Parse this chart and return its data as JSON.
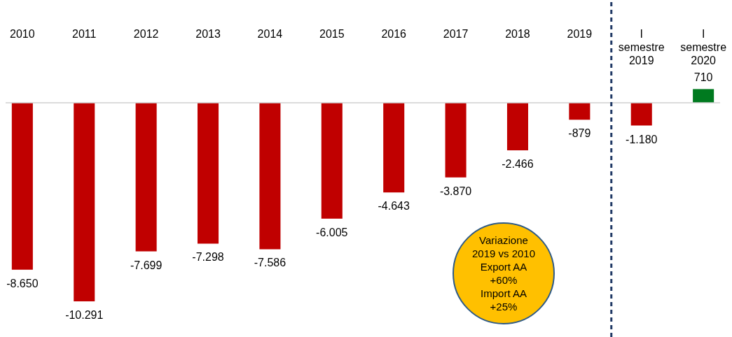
{
  "chart_data": {
    "type": "bar",
    "categories": [
      "2010",
      "2011",
      "2012",
      "2013",
      "2014",
      "2015",
      "2016",
      "2017",
      "2018",
      "2019",
      "I semestre 2019",
      "I semestre 2020"
    ],
    "values": [
      -8650,
      -10291,
      -7699,
      -7298,
      -7586,
      -6005,
      -4643,
      -3870,
      -2466,
      -879,
      -1180,
      710
    ],
    "value_labels": [
      "-8.650",
      "-10.291",
      "-7.699",
      "-7.298",
      "-7.586",
      "-6.005",
      "-4.643",
      "-3.870",
      "-2.466",
      "-879",
      "-1.180",
      "710"
    ],
    "colors": [
      "#c00000",
      "#c00000",
      "#c00000",
      "#c00000",
      "#c00000",
      "#c00000",
      "#c00000",
      "#c00000",
      "#c00000",
      "#c00000",
      "#c00000",
      "#007a1f"
    ],
    "ref_lines": [
      {
        "axis": "x",
        "value": "I semestre 2019",
        "color": "#1f3864",
        "line_style": "dashed"
      }
    ],
    "annotations": [
      "Variazione\n2019 vs 2010\nExport AA\n+60%\nImport AA\n+25%"
    ],
    "grid": false
  }
}
